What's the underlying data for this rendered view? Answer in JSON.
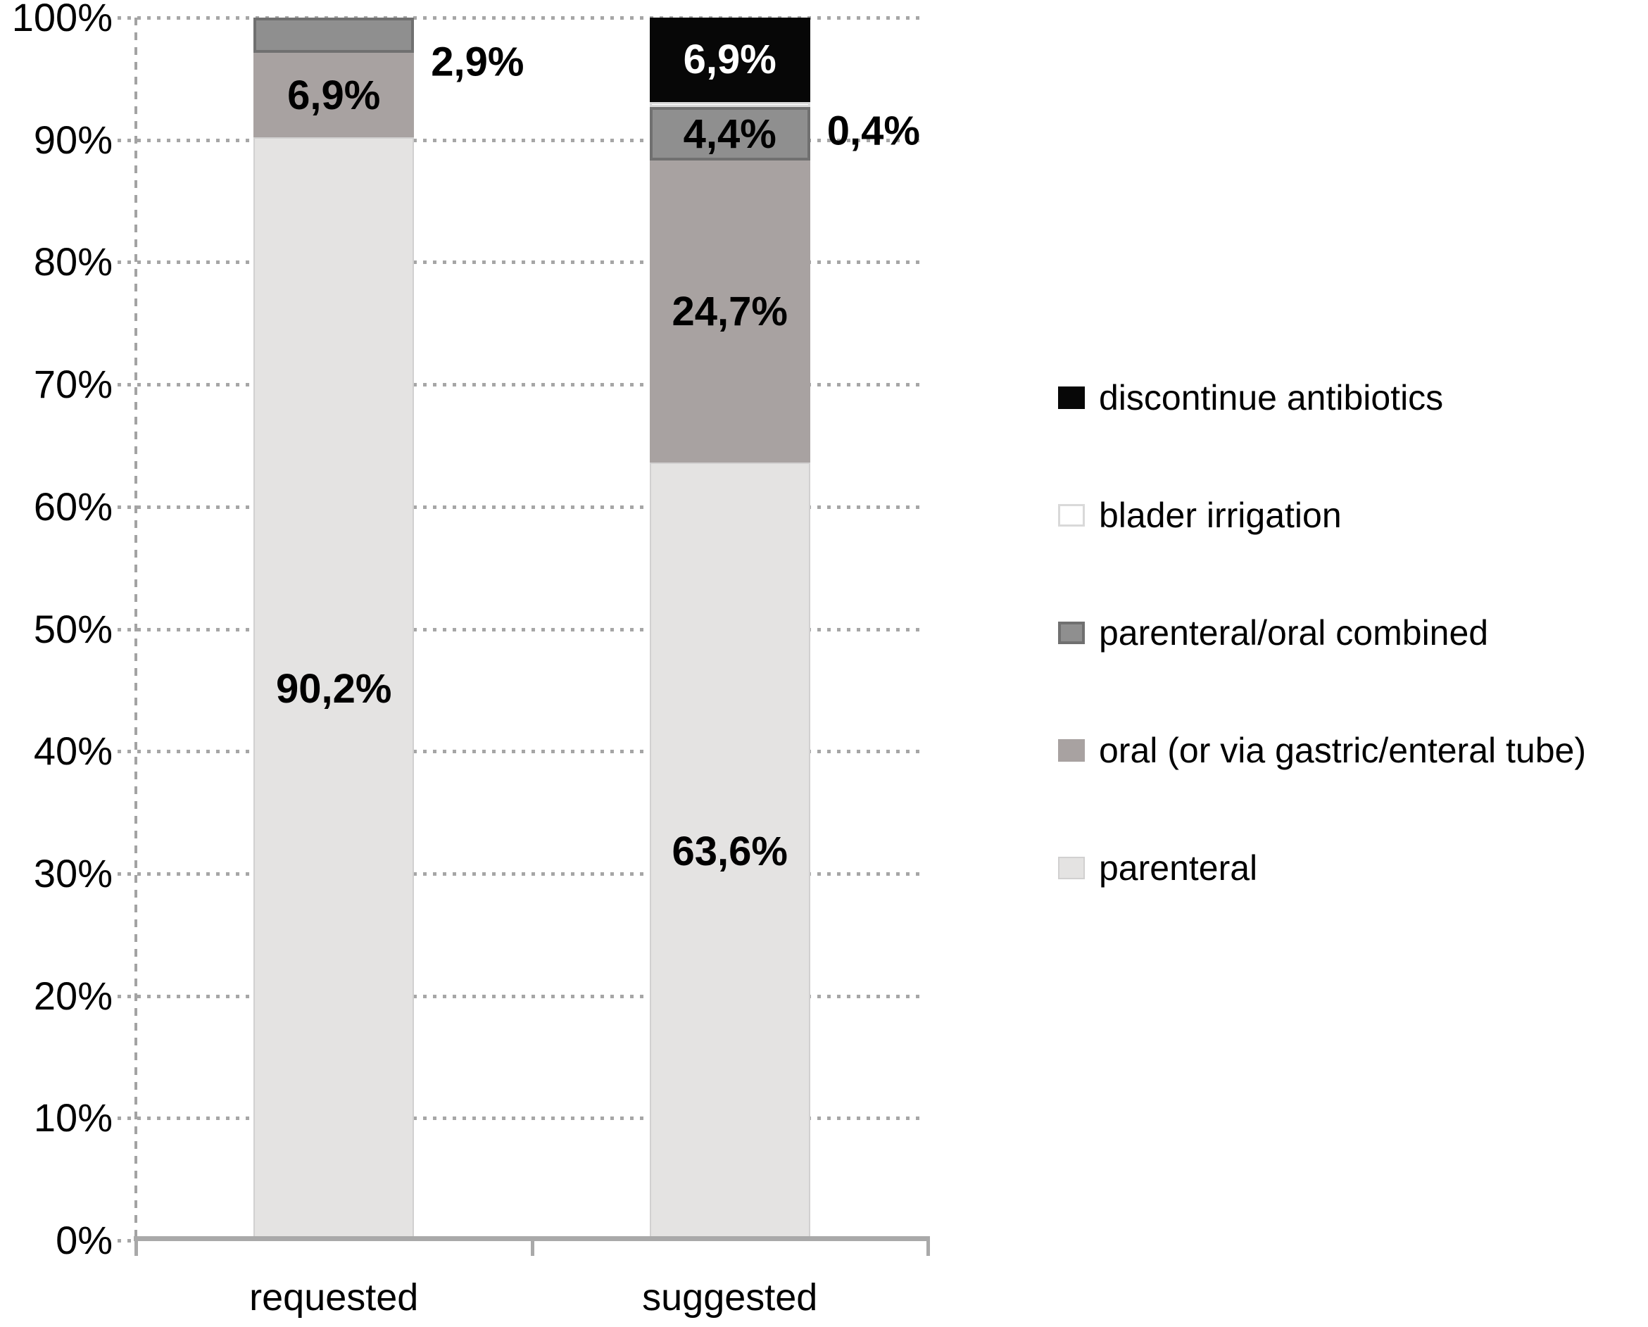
{
  "chart_data": {
    "type": "bar",
    "stacked": true,
    "orientation": "vertical",
    "title": "",
    "xlabel": "",
    "ylabel": "",
    "categories": [
      "requested",
      "suggested"
    ],
    "series": [
      {
        "name": "parenteral",
        "values": [
          90.2,
          63.6
        ]
      },
      {
        "name": "oral (or via gastric/enteral tube)",
        "values": [
          6.9,
          24.7
        ]
      },
      {
        "name": "parenteral/oral combined",
        "values": [
          2.9,
          4.4
        ]
      },
      {
        "name": "blader irrigation",
        "values": [
          0,
          0.4
        ]
      },
      {
        "name": "discontinue antibiotics",
        "values": [
          0,
          6.9
        ]
      }
    ],
    "data_labels": [
      [
        "90,2%",
        "63,6%"
      ],
      [
        "6,9%",
        "24,7%"
      ],
      [
        "2,9%",
        "4,4%"
      ],
      [
        "",
        "0,4%"
      ],
      [
        "",
        "6,9%"
      ]
    ],
    "label_placement": [
      [
        "inside",
        "inside"
      ],
      [
        "inside",
        "inside"
      ],
      [
        "outside",
        "inside"
      ],
      [
        "none",
        "outside"
      ],
      [
        "none",
        "inside"
      ]
    ],
    "colors": {
      "parenteral": {
        "fill": "#e4e3e2",
        "border": "#d1d0d0",
        "border_width": 2,
        "text": "#000000"
      },
      "oral (or via gastric/enteral tube)": {
        "fill": "#a8a2a1",
        "border": "#a8a2a1",
        "border_width": 0,
        "text": "#000000"
      },
      "parenteral/oral combined": {
        "fill": "#8f8f8f",
        "border": "#707070",
        "border_width": 4,
        "text": "#000000"
      },
      "blader irrigation": {
        "fill": "#ffffff",
        "border": "#d9d9d9",
        "border_width": 3,
        "text": "#000000"
      },
      "discontinue antibiotics": {
        "fill": "#070707",
        "border": "#070707",
        "border_width": 0,
        "text": "#ffffff"
      }
    },
    "ylim": [
      0,
      100
    ],
    "y_ticks": [
      "0%",
      "10%",
      "20%",
      "30%",
      "40%",
      "50%",
      "60%",
      "70%",
      "80%",
      "90%",
      "100%"
    ],
    "grid": {
      "horizontal": true,
      "style": "dotted",
      "color": "#a6a6a6"
    },
    "legend_position": "right",
    "legend_order": [
      "discontinue antibiotics",
      "blader irrigation",
      "parenteral/oral combined",
      "oral (or via gastric/enteral tube)",
      "parenteral"
    ]
  }
}
